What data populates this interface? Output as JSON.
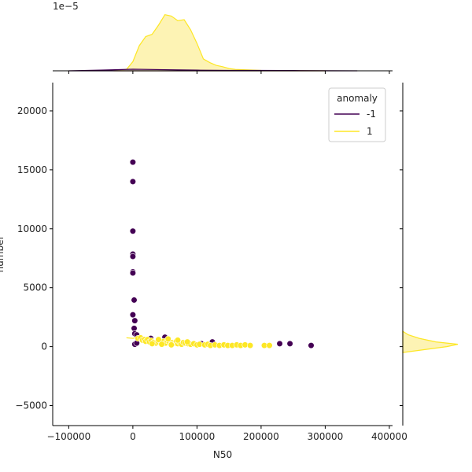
{
  "chart_data": {
    "type": "scatter",
    "xlabel": "N50",
    "ylabel": "number",
    "xlim": [
      -125000,
      405000
    ],
    "ylim": [
      -6700,
      22400
    ],
    "xticks": [
      -100000,
      0,
      100000,
      200000,
      300000,
      400000
    ],
    "xtick_labels": [
      "−100000",
      "0",
      "100000",
      "200000",
      "300000",
      "400000"
    ],
    "yticks": [
      -5000,
      0,
      5000,
      10000,
      15000,
      20000
    ],
    "ytick_labels": [
      "−5000",
      "0",
      "5000",
      "10000",
      "15000",
      "20000"
    ],
    "top_axis_offset_label": "1e−5",
    "legend": {
      "title": "anomaly",
      "placement": "top-right",
      "entries": [
        "-1",
        "1"
      ]
    },
    "colors": {
      "-1": "#440154",
      "1": "#fde725",
      "fill_1": "#fdf3b4"
    },
    "series": [
      {
        "name": "-1",
        "points": [
          [
            0,
            15650
          ],
          [
            0,
            14000
          ],
          [
            0,
            9800
          ],
          [
            0,
            7850
          ],
          [
            0,
            7650
          ],
          [
            0,
            6350
          ],
          [
            0,
            6250
          ],
          [
            2000,
            3950
          ],
          [
            0,
            2700
          ],
          [
            3000,
            2200
          ],
          [
            2000,
            1550
          ],
          [
            3000,
            1100
          ],
          [
            6000,
            1000
          ],
          [
            3000,
            200
          ],
          [
            6000,
            300
          ],
          [
            28000,
            700
          ],
          [
            50000,
            800
          ],
          [
            107000,
            250
          ],
          [
            124000,
            400
          ],
          [
            229000,
            250
          ],
          [
            245000,
            250
          ],
          [
            278000,
            100
          ]
        ]
      },
      {
        "name": "1",
        "points": [
          [
            8000,
            700
          ],
          [
            12000,
            750
          ],
          [
            15000,
            550
          ],
          [
            18000,
            600
          ],
          [
            20000,
            450
          ],
          [
            23000,
            600
          ],
          [
            26000,
            400
          ],
          [
            29000,
            500
          ],
          [
            32000,
            350
          ],
          [
            36000,
            300
          ],
          [
            40000,
            400
          ],
          [
            44000,
            350
          ],
          [
            48000,
            450
          ],
          [
            51000,
            300
          ],
          [
            54000,
            500
          ],
          [
            57000,
            400
          ],
          [
            60000,
            250
          ],
          [
            62000,
            350
          ],
          [
            65000,
            300
          ],
          [
            68000,
            450
          ],
          [
            70000,
            250
          ],
          [
            73000,
            350
          ],
          [
            76000,
            200
          ],
          [
            79000,
            350
          ],
          [
            82000,
            300
          ],
          [
            86000,
            250
          ],
          [
            90000,
            200
          ],
          [
            95000,
            250
          ],
          [
            100000,
            150
          ],
          [
            104000,
            200
          ],
          [
            112000,
            150
          ],
          [
            117000,
            200
          ],
          [
            121000,
            100
          ],
          [
            128000,
            150
          ],
          [
            135000,
            100
          ],
          [
            142000,
            150
          ],
          [
            148000,
            100
          ],
          [
            155000,
            100
          ],
          [
            162000,
            150
          ],
          [
            168000,
            100
          ],
          [
            175000,
            150
          ],
          [
            183000,
            100
          ],
          [
            205000,
            100
          ],
          [
            213000,
            100
          ],
          [
            40000,
            600
          ],
          [
            55000,
            650
          ],
          [
            70000,
            550
          ],
          [
            85000,
            400
          ],
          [
            45000,
            200
          ],
          [
            60000,
            150
          ],
          [
            30000,
            250
          ]
        ]
      }
    ],
    "top_marginal_x": [
      -30000,
      -10000,
      0,
      10000,
      20000,
      30000,
      40000,
      50000,
      60000,
      70000,
      80000,
      90000,
      100000,
      110000,
      120000,
      130000,
      140000,
      150000,
      160000,
      180000,
      200000,
      230000,
      260000,
      300000
    ],
    "top_marginal_density_1": [
      0,
      0.3,
      2.0,
      5.5,
      7.5,
      8.0,
      10.0,
      12.3,
      12.0,
      11.0,
      11.2,
      9.0,
      6.0,
      2.6,
      1.8,
      1.2,
      0.9,
      0.5,
      0.3,
      0.2,
      0.1,
      0.05,
      0.02,
      0
    ],
    "top_marginal_x_neg": [
      -100000,
      -50000,
      0,
      50000,
      100000,
      150000,
      200000,
      250000,
      300000,
      350000
    ],
    "top_marginal_density_neg1": [
      0,
      0.15,
      0.35,
      0.25,
      0.15,
      0.08,
      0.08,
      0.06,
      0.03,
      0
    ],
    "right_marginal_y": [
      -500,
      0,
      200,
      400,
      700,
      1000,
      1300
    ],
    "right_marginal_density_1": [
      0,
      8,
      10,
      6,
      3,
      1,
      0
    ]
  }
}
